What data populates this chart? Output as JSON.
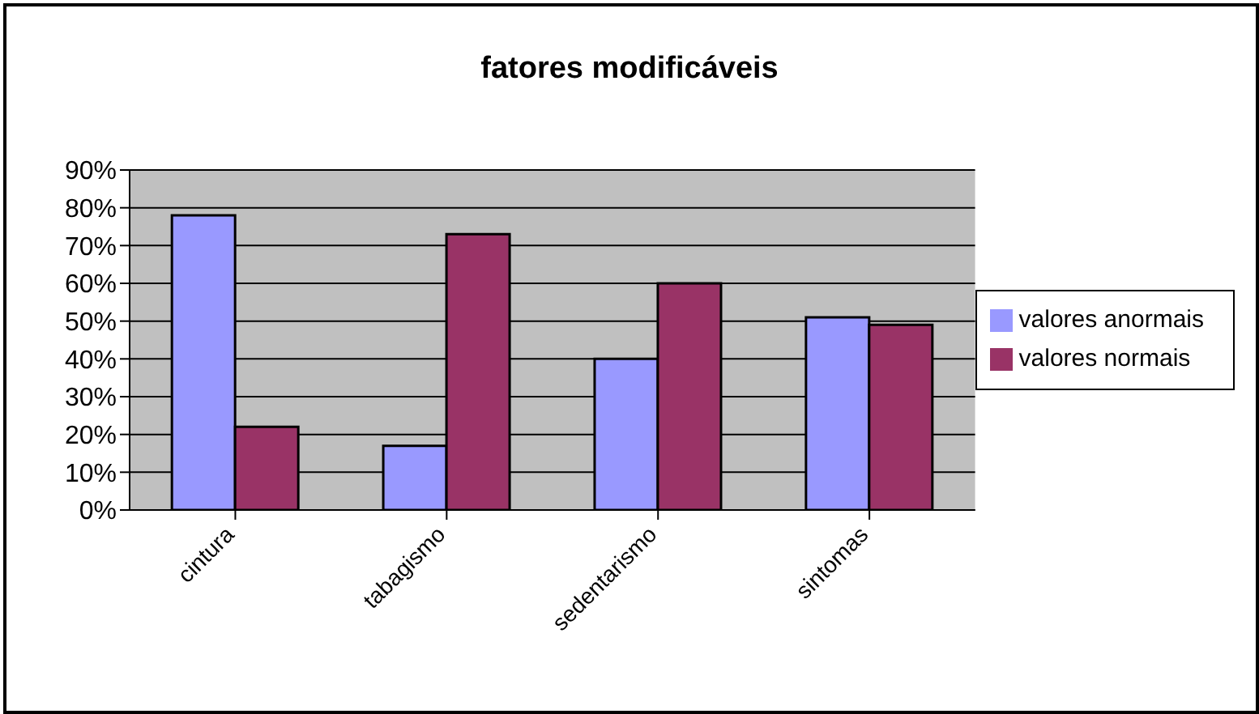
{
  "chart_data": {
    "type": "bar",
    "title": "fatores modificáveis",
    "categories": [
      "cintura",
      "tabagismo",
      "sedentarismo",
      "sintomas"
    ],
    "series": [
      {
        "name": "valores anormais",
        "color": "#9999ff",
        "values": [
          78,
          17,
          40,
          51
        ]
      },
      {
        "name": "valores normais",
        "color": "#993366",
        "values": [
          22,
          73,
          60,
          49
        ]
      }
    ],
    "ylim": [
      0,
      90
    ],
    "yticks": [
      {
        "value": 0,
        "label": "0%"
      },
      {
        "value": 10,
        "label": "10%"
      },
      {
        "value": 20,
        "label": "20%"
      },
      {
        "value": 30,
        "label": "30%"
      },
      {
        "value": 40,
        "label": "40%"
      },
      {
        "value": 50,
        "label": "50%"
      },
      {
        "value": 60,
        "label": "60%"
      },
      {
        "value": 70,
        "label": "70%"
      },
      {
        "value": 80,
        "label": "80%"
      },
      {
        "value": 90,
        "label": "90%"
      }
    ],
    "grid": "y",
    "legend": "right"
  }
}
